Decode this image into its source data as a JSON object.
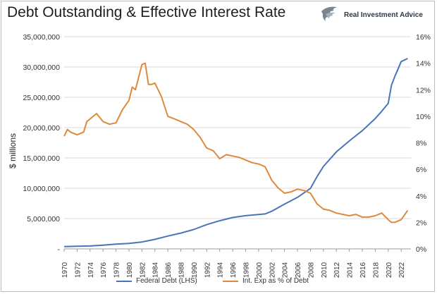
{
  "title": "Debt Outstanding & Effective Interest Rate",
  "brand": {
    "name": "Real Investment Advice",
    "logo_icon": "eagle-logo-icon"
  },
  "colors": {
    "debt": "#4a74b8",
    "interest": "#dd8a3c",
    "grid": "#d9d9d9"
  },
  "chart_data": {
    "type": "line",
    "title": "Debt Outstanding & Effective Interest Rate",
    "ylabel": "$ millions",
    "xlabel": "",
    "xlim": [
      1970,
      2023.5
    ],
    "x_ticks": [
      "1970",
      "1972",
      "1974",
      "1976",
      "1978",
      "1980",
      "1982",
      "1984",
      "1986",
      "1988",
      "1990",
      "1992",
      "1994",
      "1996",
      "1998",
      "2000",
      "2002",
      "2004",
      "2006",
      "2008",
      "2010",
      "2012",
      "2014",
      "2016",
      "2018",
      "2020",
      "2022"
    ],
    "y_left": {
      "lim": [
        0,
        35000000
      ],
      "ticks": [
        "-",
        "5,000,000",
        "10,000,000",
        "15,000,000",
        "20,000,000",
        "25,000,000",
        "30,000,000",
        "35,000,000"
      ]
    },
    "y_right": {
      "lim": [
        0,
        16
      ],
      "ticks": [
        "0%",
        "2%",
        "4%",
        "6%",
        "8%",
        "10%",
        "12%",
        "14%",
        "16%"
      ]
    },
    "grid": true,
    "legend": "bottom",
    "series": [
      {
        "name": "Federal Debt (LHS)",
        "axis": "left",
        "x": [
          1970,
          1972,
          1974,
          1976,
          1978,
          1980,
          1982,
          1984,
          1986,
          1988,
          1990,
          1992,
          1994,
          1996,
          1998,
          2000,
          2001,
          2002,
          2004,
          2006,
          2008,
          2009,
          2010,
          2012,
          2014,
          2016,
          2018,
          2019,
          2020,
          2020.5,
          2021,
          2022,
          2023
        ],
        "values": [
          380000,
          430000,
          480000,
          620000,
          780000,
          900000,
          1140000,
          1570000,
          2120000,
          2600000,
          3200000,
          4000000,
          4640000,
          5180000,
          5480000,
          5680000,
          5770000,
          6200000,
          7380000,
          8500000,
          9980000,
          11900000,
          13600000,
          16000000,
          17800000,
          19500000,
          21500000,
          22700000,
          24000000,
          27000000,
          28400000,
          30900000,
          31400000
        ]
      },
      {
        "name": "Int. Exp as % of Debt",
        "axis": "right",
        "x": [
          1970,
          1970.5,
          1971,
          1972,
          1973,
          1973.5,
          1974,
          1975,
          1976,
          1977,
          1978,
          1979,
          1980,
          1980.5,
          1981,
          1982,
          1982.5,
          1983,
          1983.5,
          1984,
          1985,
          1986,
          1987,
          1988,
          1989,
          1990,
          1991,
          1992,
          1993,
          1994,
          1995,
          1996,
          1997,
          1998,
          1999,
          2000,
          2001,
          2002,
          2003,
          2004,
          2005,
          2006,
          2007,
          2008,
          2009,
          2010,
          2011,
          2012,
          2013,
          2014,
          2015,
          2016,
          2017,
          2018,
          2019,
          2020,
          2020.5,
          2021,
          2022,
          2023
        ],
        "values": [
          8.5,
          9.0,
          8.8,
          8.6,
          8.8,
          9.6,
          9.8,
          10.2,
          9.6,
          9.4,
          9.5,
          10.5,
          11.2,
          12.2,
          12.0,
          13.9,
          14.0,
          12.4,
          12.4,
          12.5,
          11.5,
          10.0,
          9.8,
          9.6,
          9.4,
          9.0,
          8.4,
          7.6,
          7.4,
          6.8,
          7.1,
          7.0,
          6.9,
          6.7,
          6.5,
          6.4,
          6.2,
          5.2,
          4.6,
          4.2,
          4.3,
          4.5,
          4.4,
          4.2,
          3.4,
          3.0,
          2.9,
          2.7,
          2.6,
          2.5,
          2.6,
          2.4,
          2.4,
          2.5,
          2.7,
          2.2,
          2.0,
          2.0,
          2.2,
          2.9
        ]
      }
    ]
  }
}
